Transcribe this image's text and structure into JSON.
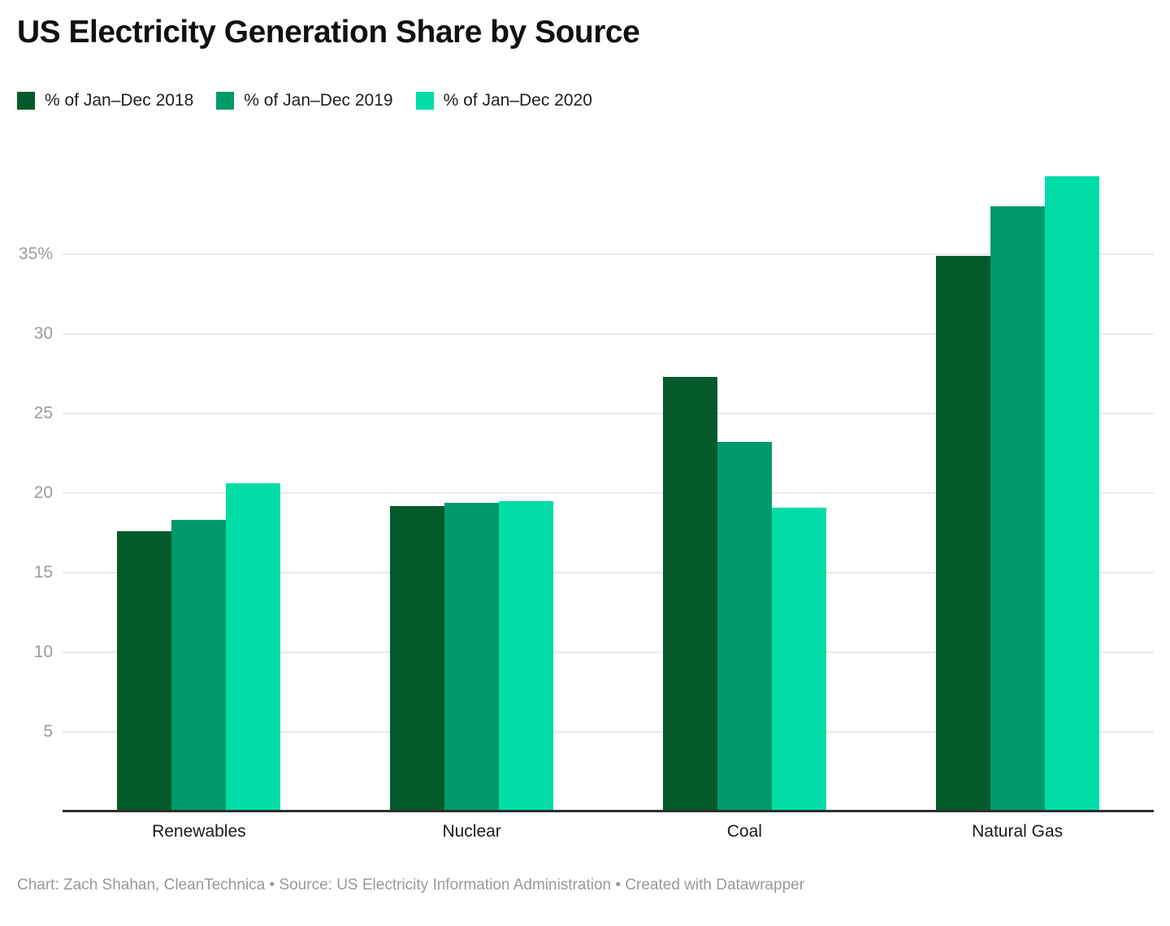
{
  "header": {
    "title": "US Electricity Generation Share by Source"
  },
  "chart_data": {
    "type": "bar",
    "title": "US Electricity Generation Share by Source",
    "categories": [
      "Renewables",
      "Nuclear",
      "Coal",
      "Natural Gas"
    ],
    "series": [
      {
        "name": "% of Jan–Dec 2018",
        "color": "#055a2b",
        "values": [
          17.6,
          19.2,
          27.3,
          34.9
        ]
      },
      {
        "name": "% of Jan–Dec 2019",
        "color": "#009a6a",
        "values": [
          18.3,
          19.4,
          23.2,
          38.0
        ]
      },
      {
        "name": "% of Jan–Dec 2020",
        "color": "#02dca6",
        "values": [
          20.6,
          19.5,
          19.1,
          39.9
        ]
      }
    ],
    "xlabel": "",
    "ylabel": "",
    "yticks": [
      {
        "value": 5,
        "label": "5"
      },
      {
        "value": 10,
        "label": "10"
      },
      {
        "value": 15,
        "label": "15"
      },
      {
        "value": 20,
        "label": "20"
      },
      {
        "value": 25,
        "label": "25"
      },
      {
        "value": 30,
        "label": "30"
      },
      {
        "value": 35,
        "label": "35%"
      }
    ],
    "ylim": [
      0,
      40.7
    ],
    "grid": "horizontal",
    "legend_position": "top-left",
    "background": "#ffffff",
    "gridline_color": "#e9e9e9",
    "axis_line_color": "#2e2e2e",
    "tick_label_color": "#9b9b9b"
  },
  "footer": {
    "text": "Chart: Zach Shahan, CleanTechnica • Source: US Electricity Information Administration • Created with Datawrapper"
  }
}
